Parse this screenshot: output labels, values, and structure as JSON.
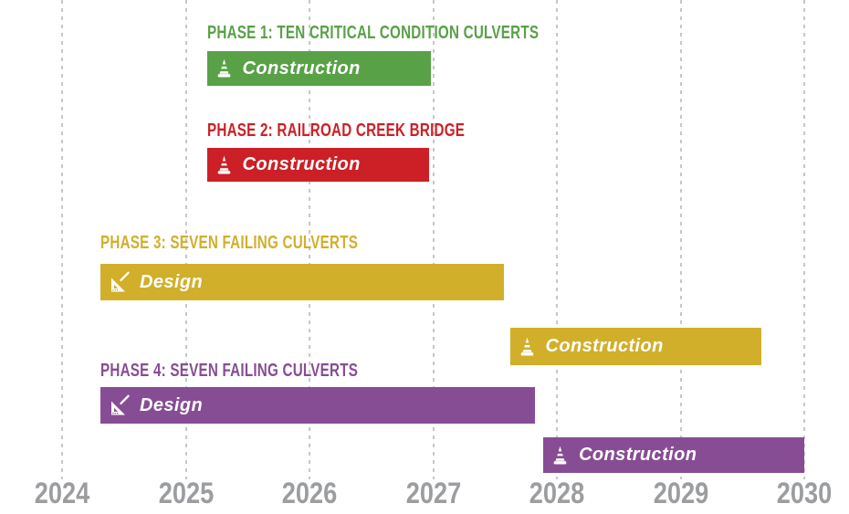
{
  "page": {
    "background": "#ffffff"
  },
  "chart_data": {
    "type": "gantt",
    "title": "",
    "x_axis": {
      "min": 2024,
      "max": 2030,
      "ticks": [
        2024,
        2025,
        2026,
        2027,
        2028,
        2029,
        2030
      ],
      "gridlines": "dashed-vertical"
    },
    "colors": {
      "axis_label": "#9B9DA0",
      "gridline": "#C6C7C9",
      "bar_text": "#FFFFFF",
      "phase1": "#58A147",
      "phase2": "#CC2026",
      "phase3": "#D1AF2B",
      "phase4": "#874D94"
    },
    "legend_position": "none",
    "phases": [
      {
        "name": "PHASE 1: TEN CRITICAL CONDITION CULVERTS",
        "color": "#58A147",
        "bars": [
          {
            "label": "Construction",
            "icon": "traffic-cone-icon",
            "start": 2025.17,
            "end": 2026.98
          }
        ]
      },
      {
        "name": "PHASE 2: RAILROAD CREEK BRIDGE",
        "color": "#CC2026",
        "bars": [
          {
            "label": "Construction",
            "icon": "traffic-cone-icon",
            "start": 2025.17,
            "end": 2026.97
          }
        ]
      },
      {
        "name": "PHASE 3: SEVEN FAILING CULVERTS",
        "color": "#D1AF2B",
        "bars": [
          {
            "label": "Design",
            "icon": "set-square-icon",
            "start": 2024.31,
            "end": 2027.57
          },
          {
            "label": "Construction",
            "icon": "traffic-cone-icon",
            "start": 2027.62,
            "end": 2029.65
          }
        ]
      },
      {
        "name": "PHASE 4: SEVEN FAILING CULVERTS",
        "color": "#874D94",
        "bars": [
          {
            "label": "Design",
            "icon": "set-square-icon",
            "start": 2024.31,
            "end": 2027.82
          },
          {
            "label": "Construction",
            "icon": "traffic-cone-icon",
            "start": 2027.89,
            "end": 2030.0
          }
        ]
      }
    ]
  }
}
